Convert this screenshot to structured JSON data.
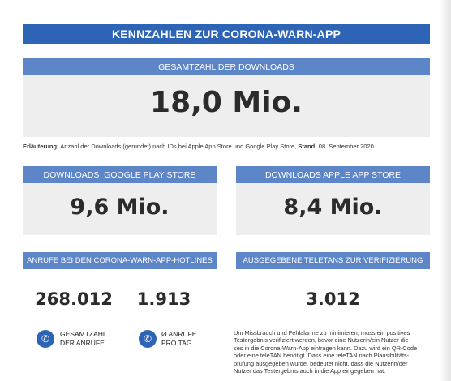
{
  "title": "KENNZAHLEN ZUR CORONA-WARN-APP",
  "total": {
    "header": "GESAMTZAHL DER DOWNLOADS",
    "value": "18,0 Mio."
  },
  "note": {
    "label": "Erläuterung:",
    "text": " Anzahl der Downloads (gerundet) nach IDs bei Apple App Store und Google Play Store, ",
    "stand_label": "Stand:",
    "stand_value": " 08. September 2020"
  },
  "google": {
    "header": "DOWNLOADS  GOOGLE PLAY STORE",
    "value": "9,6 Mio."
  },
  "apple": {
    "header": "DOWNLOADS APPLE APP STORE",
    "value": "8,4 Mio."
  },
  "hotline": {
    "header": "ANRUFE BEI DEN CORONA-WARN-APP-HOTLINES",
    "total_value": "268.012",
    "total_caption": [
      "GESAMTZAHL",
      "DER ANRUFE"
    ],
    "daily_value": "1.913",
    "daily_caption": [
      "Ø ANRUFE",
      "PRO TAG"
    ],
    "icon": "phone-icon"
  },
  "teletan": {
    "header": "AUSGEGEBENE TELETANS ZUR VERIFIZIERUNG",
    "value": "3.012",
    "description": [
      "Um Missbrauch und Fehlalarme zu minimieren, muss ein positives",
      "Testergebnis verifiziert werden, bevor eine Nutzerin/ein Nutzer die-",
      "ses in die Corona-Warn-App eintragen kann. Dazu wird ein QR-Code",
      "oder eine teleTAN benötigt. Dass eine teleTAN nach Plausibilitäts-",
      "prüfung ausgegeben wurde, bedeutet nicht, dass die Nutzerin/der",
      "Nutzer das Testergebnis auch in die App eingegeben hat."
    ]
  },
  "colors": {
    "title_bar": "#2e64b5",
    "header_bar": "#5d86c9",
    "panel": "#eeeeee",
    "phone_icon": "#2e64b5"
  }
}
